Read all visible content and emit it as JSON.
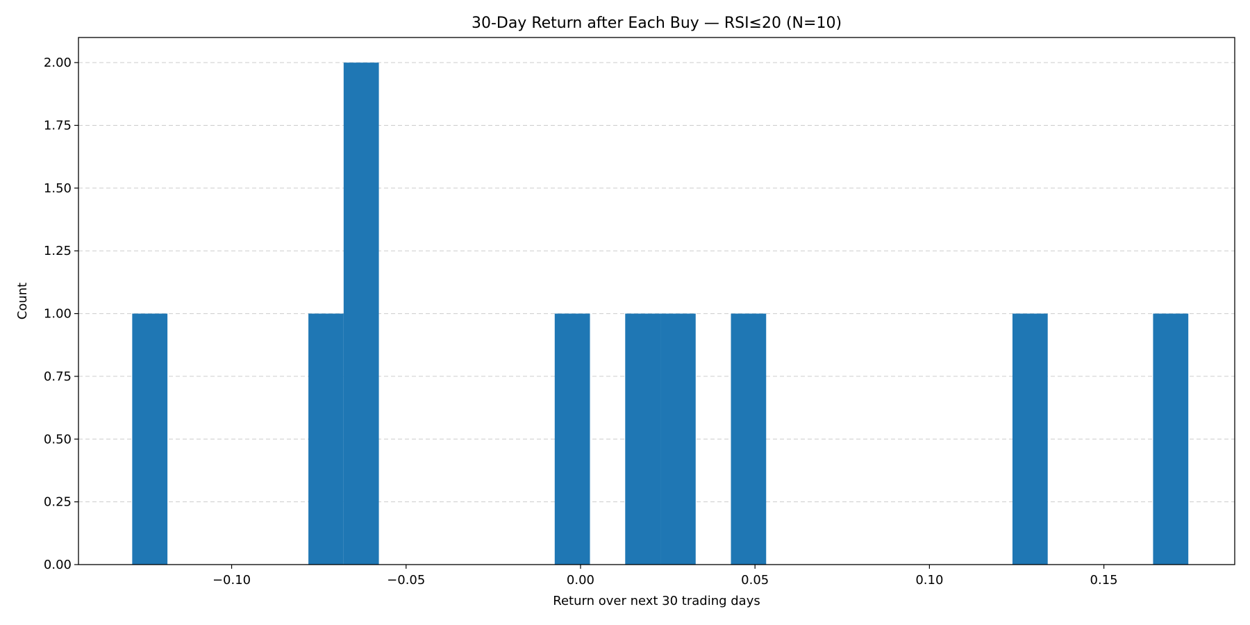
{
  "chart_data": {
    "type": "bar",
    "title": "30-Day Return after Each Buy — RSI≤20 (N=10)",
    "xlabel": "Return over next 30 trading days",
    "ylabel": "Count",
    "xlim": [
      -0.1439,
      0.1875
    ],
    "ylim": [
      0,
      2.1
    ],
    "x_ticks": [
      {
        "value": -0.1,
        "label": "−0.10"
      },
      {
        "value": -0.05,
        "label": "−0.05"
      },
      {
        "value": 0.0,
        "label": "0.00"
      },
      {
        "value": 0.05,
        "label": "0.05"
      },
      {
        "value": 0.1,
        "label": "0.10"
      },
      {
        "value": 0.15,
        "label": "0.15"
      }
    ],
    "y_ticks": [
      {
        "value": 0.0,
        "label": "0.00"
      },
      {
        "value": 0.25,
        "label": "0.25"
      },
      {
        "value": 0.5,
        "label": "0.50"
      },
      {
        "value": 0.75,
        "label": "0.75"
      },
      {
        "value": 1.0,
        "label": "1.00"
      },
      {
        "value": 1.25,
        "label": "1.25"
      },
      {
        "value": 1.5,
        "label": "1.50"
      },
      {
        "value": 1.75,
        "label": "1.75"
      },
      {
        "value": 2.0,
        "label": "2.00"
      }
    ],
    "grid": "y-dashed",
    "bar_color": "#1f77b4",
    "bins": [
      {
        "x0": -0.1285,
        "x1": -0.1184,
        "count": 1
      },
      {
        "x0": -0.078,
        "x1": -0.0679,
        "count": 1
      },
      {
        "x0": -0.0679,
        "x1": -0.0578,
        "count": 2
      },
      {
        "x0": -0.0074,
        "x1": 0.0027,
        "count": 1
      },
      {
        "x0": 0.0128,
        "x1": 0.0229,
        "count": 1
      },
      {
        "x0": 0.0229,
        "x1": 0.033,
        "count": 1
      },
      {
        "x0": 0.0431,
        "x1": 0.0532,
        "count": 1
      },
      {
        "x0": 0.1238,
        "x1": 0.1339,
        "count": 1
      },
      {
        "x0": 0.1641,
        "x1": 0.1742,
        "count": 1
      }
    ]
  }
}
